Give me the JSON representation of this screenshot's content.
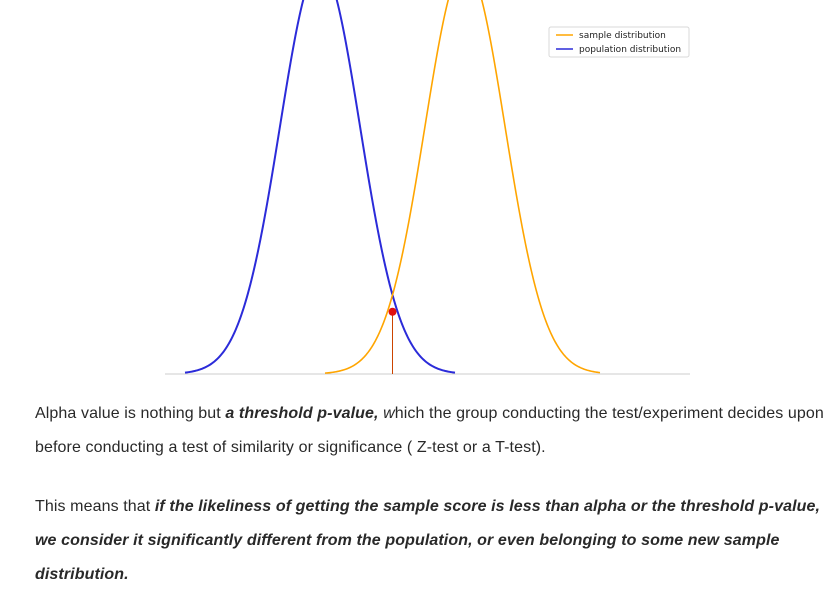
{
  "chart_data": {
    "type": "line",
    "title": "",
    "xlabel": "",
    "ylabel": "",
    "grid": false,
    "legend_position": "top-right",
    "xlim": [
      -5,
      7
    ],
    "ylim": [
      0,
      0.42
    ],
    "series": [
      {
        "name": "population distribution",
        "color": "#2b2bd9",
        "mean": -1.0,
        "sd": 0.8,
        "x_range": [
          -3.7,
          1.7
        ]
      },
      {
        "name": "sample distribution",
        "color": "#ffa500",
        "mean": 1.9,
        "sd": 0.8,
        "x_range": [
          -0.9,
          4.6
        ]
      }
    ],
    "axis_baseline": {
      "color": "#cccccc",
      "x_range": [
        -4.1,
        6.4
      ]
    },
    "intersection": {
      "x": 0.45,
      "y": 0.076,
      "marker_color": "#e01010",
      "line_color": "#cc4400"
    }
  },
  "content": {
    "p1_a": "Alpha value is nothing but ",
    "p1_b": "a threshold p-value,",
    "p1_c": " ",
    "p1_d": "w",
    "p1_e": "hich the group conducting the test/experiment decides upon before conducting a test of similarity or significance ( Z-test or a T-test).",
    "p2_a": "This means that ",
    "p2_b": "if the likeliness of getting the sample score is less than alpha or the threshold p-value, we consider it significantly different from the population, or even belonging to some new sample distribution."
  }
}
